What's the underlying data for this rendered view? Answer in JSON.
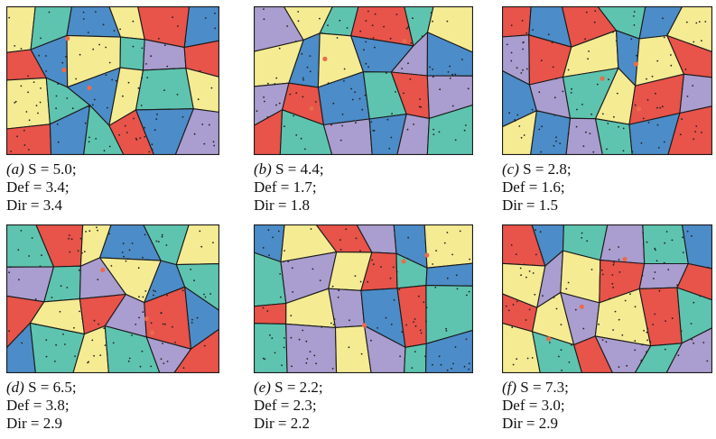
{
  "palette": {
    "red": "#E8534A",
    "teal": "#5EC4AF",
    "yellow": "#F5EB93",
    "blue": "#4C8CC8",
    "lavender": "#AA9DCF",
    "edge": "#1a1a1a",
    "dot": "#222222",
    "seed": "#E86C4E"
  },
  "panels": [
    {
      "id": "a",
      "letter": "(a)",
      "s": "S = 5.0;",
      "def": "Def = 3.4;",
      "dir": "Dir = 3.4"
    },
    {
      "id": "b",
      "letter": "(b)",
      "s": "S = 4.4;",
      "def": "Def = 1.7;",
      "dir": "Dir = 1.8"
    },
    {
      "id": "c",
      "letter": "(c)",
      "s": "S = 2.8;",
      "def": "Def = 1.6;",
      "dir": "Dir = 1.5"
    },
    {
      "id": "d",
      "letter": "(d)",
      "s": "S = 6.5;",
      "def": "Def = 3.8;",
      "dir": "Dir = 2.9"
    },
    {
      "id": "e",
      "letter": "(e)",
      "s": "S = 2.2;",
      "def": "Def = 2.3;",
      "dir": "Dir = 2.2"
    },
    {
      "id": "f",
      "letter": "(f)",
      "s": "S = 7.3;",
      "def": "Def = 3.0;",
      "dir": "Dir = 2.9"
    }
  ]
}
